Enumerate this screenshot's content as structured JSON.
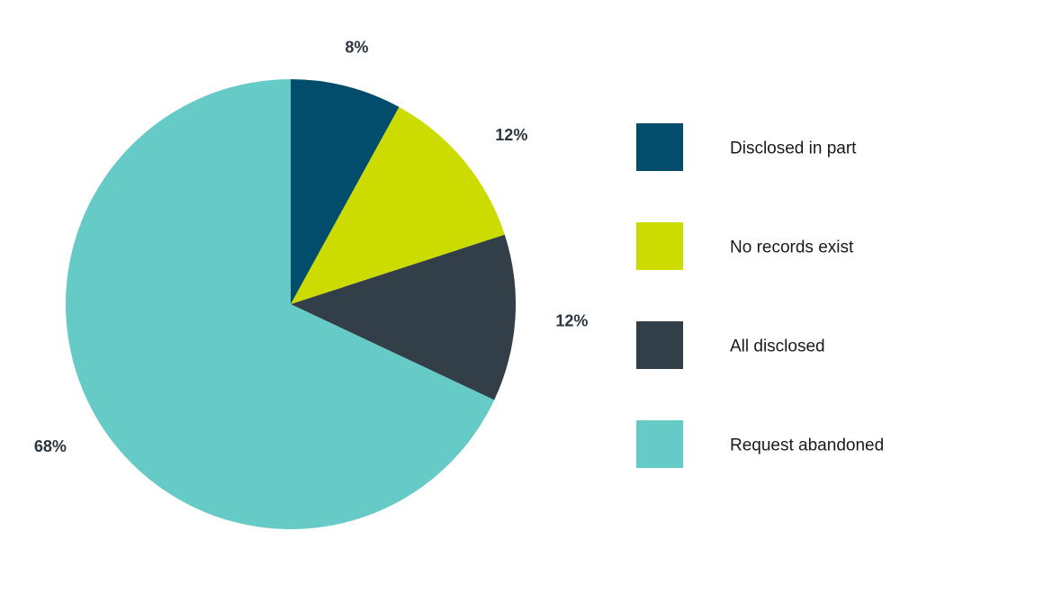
{
  "chart_data": {
    "type": "pie",
    "categories": [
      "Disclosed in part",
      "No records exist",
      "All disclosed",
      "Request abandoned"
    ],
    "values": [
      8,
      12,
      12,
      68
    ],
    "value_labels": [
      "8%",
      "12%",
      "12%",
      "68%"
    ],
    "colors": [
      "#014d6b",
      "#cddc00",
      "#333f48",
      "#66cac7"
    ],
    "start_angle": "12 o'clock",
    "direction": "clockwise",
    "legend_position": "right"
  }
}
